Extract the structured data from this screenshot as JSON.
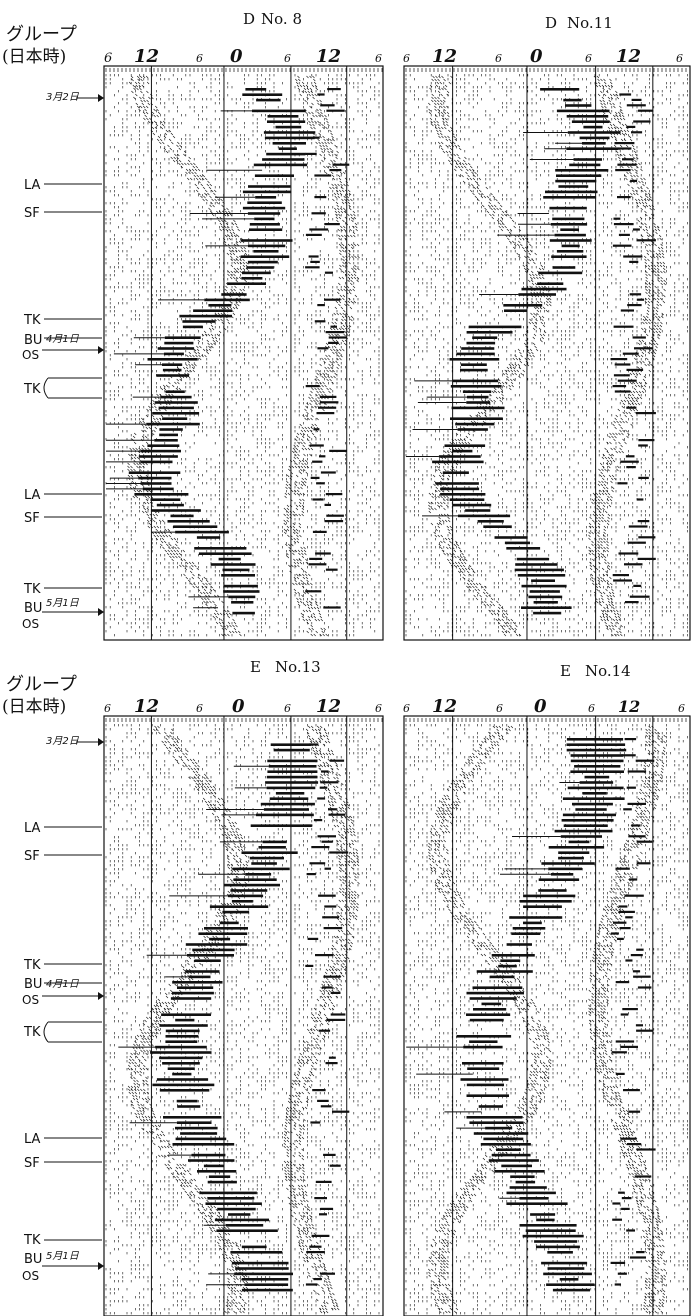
{
  "group_label": {
    "line1": "グループ",
    "line2": "(日本時)"
  },
  "hour_ticks": [
    "6",
    "12",
    "6",
    "0",
    "6",
    "12",
    "6"
  ],
  "panels": [
    {
      "title_prefix": "D",
      "title_number": "No. 8"
    },
    {
      "title_prefix": "D",
      "title_number": "No.11"
    },
    {
      "title_prefix": "E",
      "title_number": "No.13"
    },
    {
      "title_prefix": "E",
      "title_number": "No.14"
    }
  ],
  "row_labels": {
    "date_mar2": "3月2日",
    "date_apr1": "4月1日",
    "date_may1": "5月1日",
    "LA": "LA",
    "SF": "SF",
    "TK": "TK",
    "BU": "BU",
    "OS": "OS"
  },
  "colors": {
    "ink": "#111111",
    "paper": "#ffffff"
  },
  "chart_data": [
    {
      "type": "heatmap",
      "title": "D No. 8",
      "x_ticks": [
        "6",
        "12",
        "6",
        "0",
        "6",
        "12",
        "6"
      ],
      "y_markers": [
        "3月2日",
        "LA",
        "SF",
        "TK",
        "BU",
        "OS",
        "4月1日",
        "TK",
        "LA",
        "SF",
        "TK",
        "BU",
        "5月1日",
        "OS"
      ],
      "description": "daily reception pattern plotted as rows of characters; pattern bands drift diagonally"
    },
    {
      "type": "heatmap",
      "title": "D No.11",
      "x_ticks": [
        "6",
        "12",
        "6",
        "0",
        "6",
        "12",
        "6"
      ]
    },
    {
      "type": "heatmap",
      "title": "E No.13",
      "x_ticks": [
        "6",
        "12",
        "6",
        "0",
        "6",
        "12",
        "6"
      ],
      "y_markers": [
        "3月2日",
        "LA",
        "SF",
        "TK",
        "BU",
        "OS",
        "4月1日",
        "TK",
        "LA",
        "SF",
        "TK",
        "BU",
        "5月1日",
        "OS"
      ]
    },
    {
      "type": "heatmap",
      "title": "E No.14",
      "x_ticks": [
        "6",
        "12",
        "6",
        "0",
        "6",
        "12",
        "6"
      ]
    }
  ]
}
